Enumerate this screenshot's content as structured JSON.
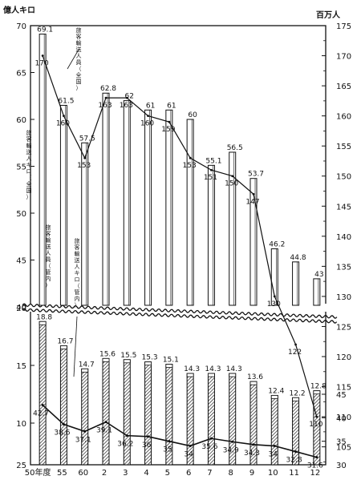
{
  "chart_data": {
    "type": "bar",
    "left_unit": "億人キロ",
    "right_unit": "百万人",
    "categories": [
      "50年度",
      "55",
      "60",
      "2",
      "3",
      "4",
      "5",
      "6",
      "7",
      "8",
      "9",
      "10",
      "11",
      "12"
    ],
    "upper_left_ticks": [
      "70",
      "65",
      "60",
      "55",
      "50",
      "45",
      "40"
    ],
    "lower_left_ticks": [
      "20",
      "15",
      "10",
      "25"
    ],
    "right_ticks": [
      "175",
      "170",
      "165",
      "160",
      "155",
      "150",
      "145",
      "140",
      "135",
      "130",
      "125",
      "120",
      "115",
      "110",
      "105",
      "45",
      "40",
      "35",
      "30"
    ],
    "series": [
      {
        "name": "旅客輸送人キロ（全国）",
        "axis": "left",
        "style": "white-bar",
        "values": [
          69.1,
          61.5,
          57.5,
          62.8,
          62,
          61,
          61,
          60,
          55.1,
          56.5,
          53.7,
          46.2,
          44.8,
          43
        ],
        "labels": [
          "69.1",
          "61.5",
          "57.5",
          "62.8",
          "62",
          "61",
          "61",
          "60",
          "55.1",
          "56.5",
          "53.7",
          "46.2",
          "44.8",
          "43"
        ]
      },
      {
        "name": "旅客輸送人員（全国）",
        "axis": "right",
        "style": "line",
        "values": [
          170,
          160,
          153,
          163,
          163,
          160,
          159,
          153,
          151,
          150,
          147,
          130,
          122,
          110
        ],
        "labels": [
          "170",
          "160",
          "153",
          "163",
          "163",
          "160",
          "159",
          "153",
          "151",
          "150",
          "147",
          "130",
          "122",
          "110"
        ]
      },
      {
        "name": "旅客輸送人キロ（管内）",
        "axis": "left",
        "style": "hatched-bar",
        "values": [
          18.8,
          16.7,
          14.7,
          15.6,
          15.5,
          15.3,
          15.1,
          14.3,
          14.3,
          14.3,
          13.6,
          12.4,
          12.2,
          12.8
        ],
        "labels": [
          "18.8",
          "16.7",
          "14.7",
          "15.6",
          "15.5",
          "15.3",
          "15.1",
          "14.3",
          "14.3",
          "14.3",
          "13.6",
          "12.4",
          "12.2",
          "12.8"
        ]
      },
      {
        "name": "旅客輸送人員（管内）",
        "axis": "right",
        "style": "line",
        "values": [
          42.7,
          38.6,
          37.1,
          39.1,
          36.2,
          36,
          35,
          34,
          35.6,
          34.9,
          34.3,
          34,
          32.8,
          31.6
        ],
        "labels": [
          "42.7",
          "38.6",
          "37.1",
          "39.1",
          "36.2",
          "36",
          "35",
          "34",
          "35.6",
          "34.9",
          "34.3",
          "34",
          "32.8",
          "31.6"
        ]
      }
    ],
    "ylim_upper_left": [
      40,
      70
    ],
    "ylim_upper_right": [
      120,
      175
    ],
    "ylim_lower_left": [
      8,
      20
    ],
    "ylim_lower_right": [
      30,
      47
    ]
  }
}
